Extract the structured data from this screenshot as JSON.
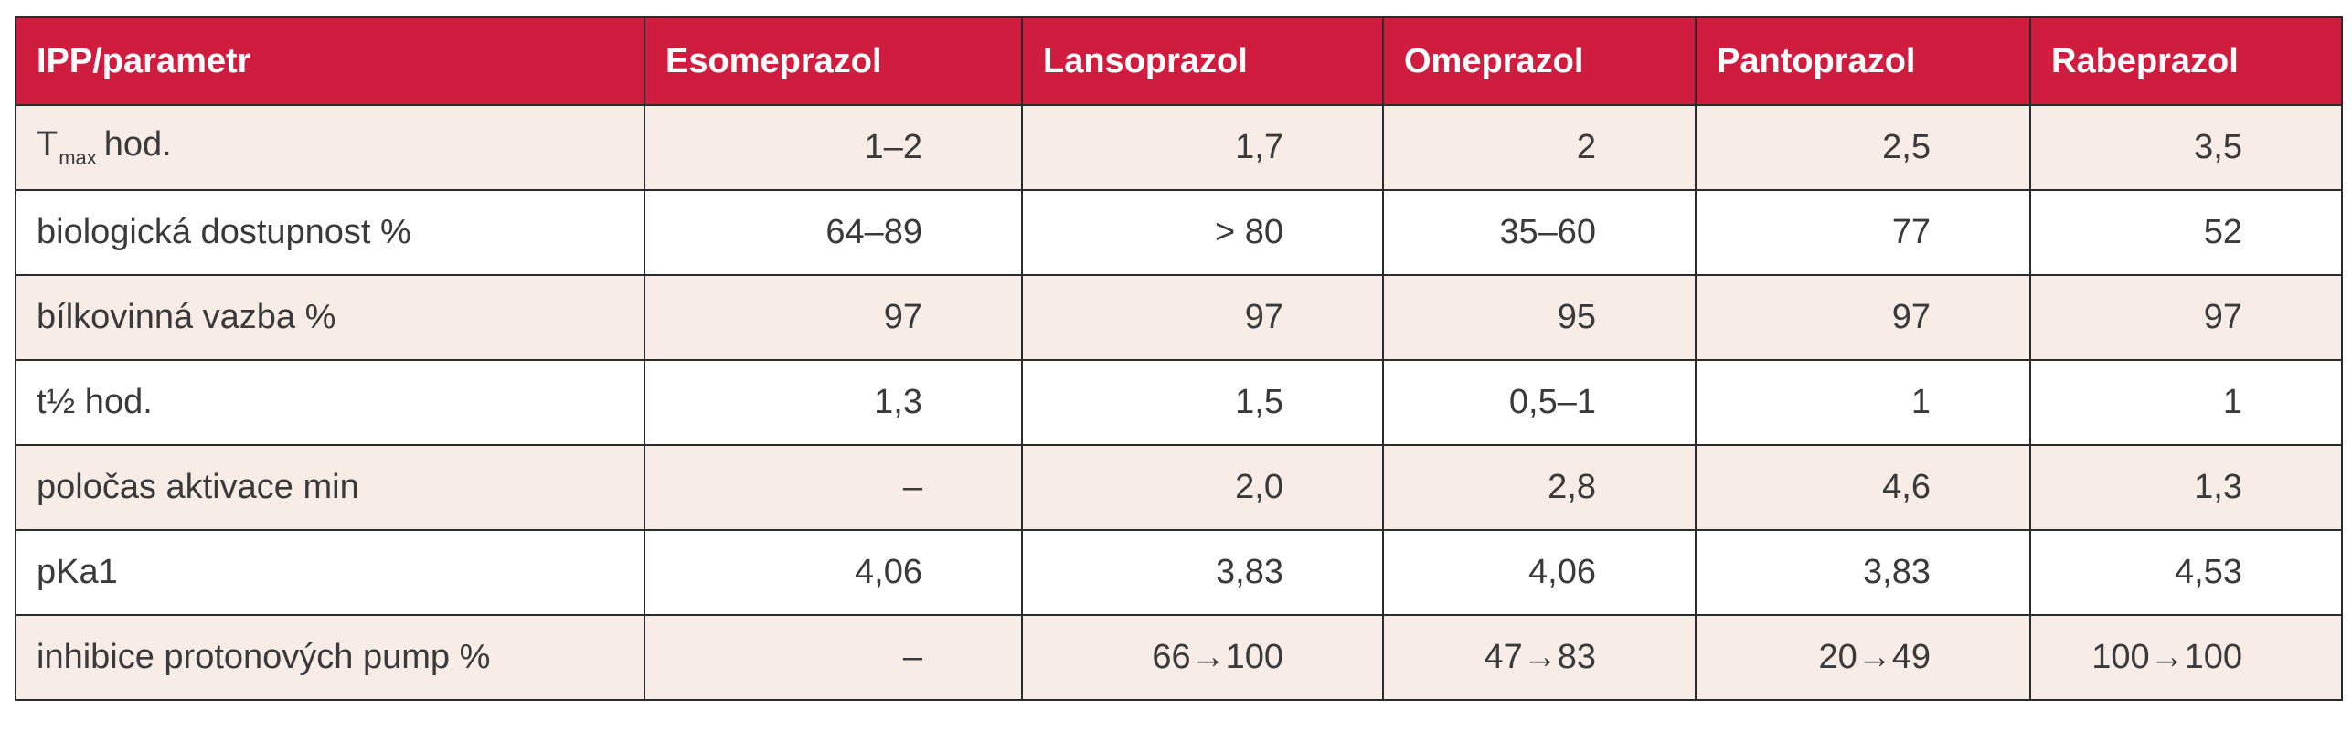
{
  "table": {
    "headers": [
      "IPP/parametr",
      "Esomeprazol",
      "Lansoprazol",
      "Omeprazol",
      "Pantoprazol",
      "Rabeprazol"
    ],
    "rows": [
      {
        "label_main": "T",
        "label_sub": "max",
        "label_rest": "hod.",
        "values": [
          "1–2",
          "1,7",
          "2",
          "2,5",
          "3,5"
        ]
      },
      {
        "label": "biologická dostupnost %",
        "values": [
          "64–89",
          "> 80",
          "35–60",
          "77",
          "52"
        ]
      },
      {
        "label": "bílkovinná vazba %",
        "values": [
          "97",
          "97",
          "95",
          "97",
          "97"
        ]
      },
      {
        "label": "t½ hod.",
        "values": [
          "1,3",
          "1,5",
          "0,5–1",
          "1",
          "1"
        ]
      },
      {
        "label": "poločas aktivace min",
        "values": [
          "–",
          "2,0",
          "2,8",
          "4,6",
          "1,3"
        ]
      },
      {
        "label": "pKa1",
        "values": [
          "4,06",
          "3,83",
          "4,06",
          "3,83",
          "4,53"
        ]
      },
      {
        "label": "inhibice protonových pump %",
        "values": [
          "–",
          "66→100",
          "47→83",
          "20→49",
          "100→100"
        ]
      }
    ]
  },
  "colors": {
    "header_bg": "#d01c3e",
    "header_text": "#ffffff",
    "row_alt_bg": "#f7ece6",
    "border": "#2b2b2b"
  }
}
